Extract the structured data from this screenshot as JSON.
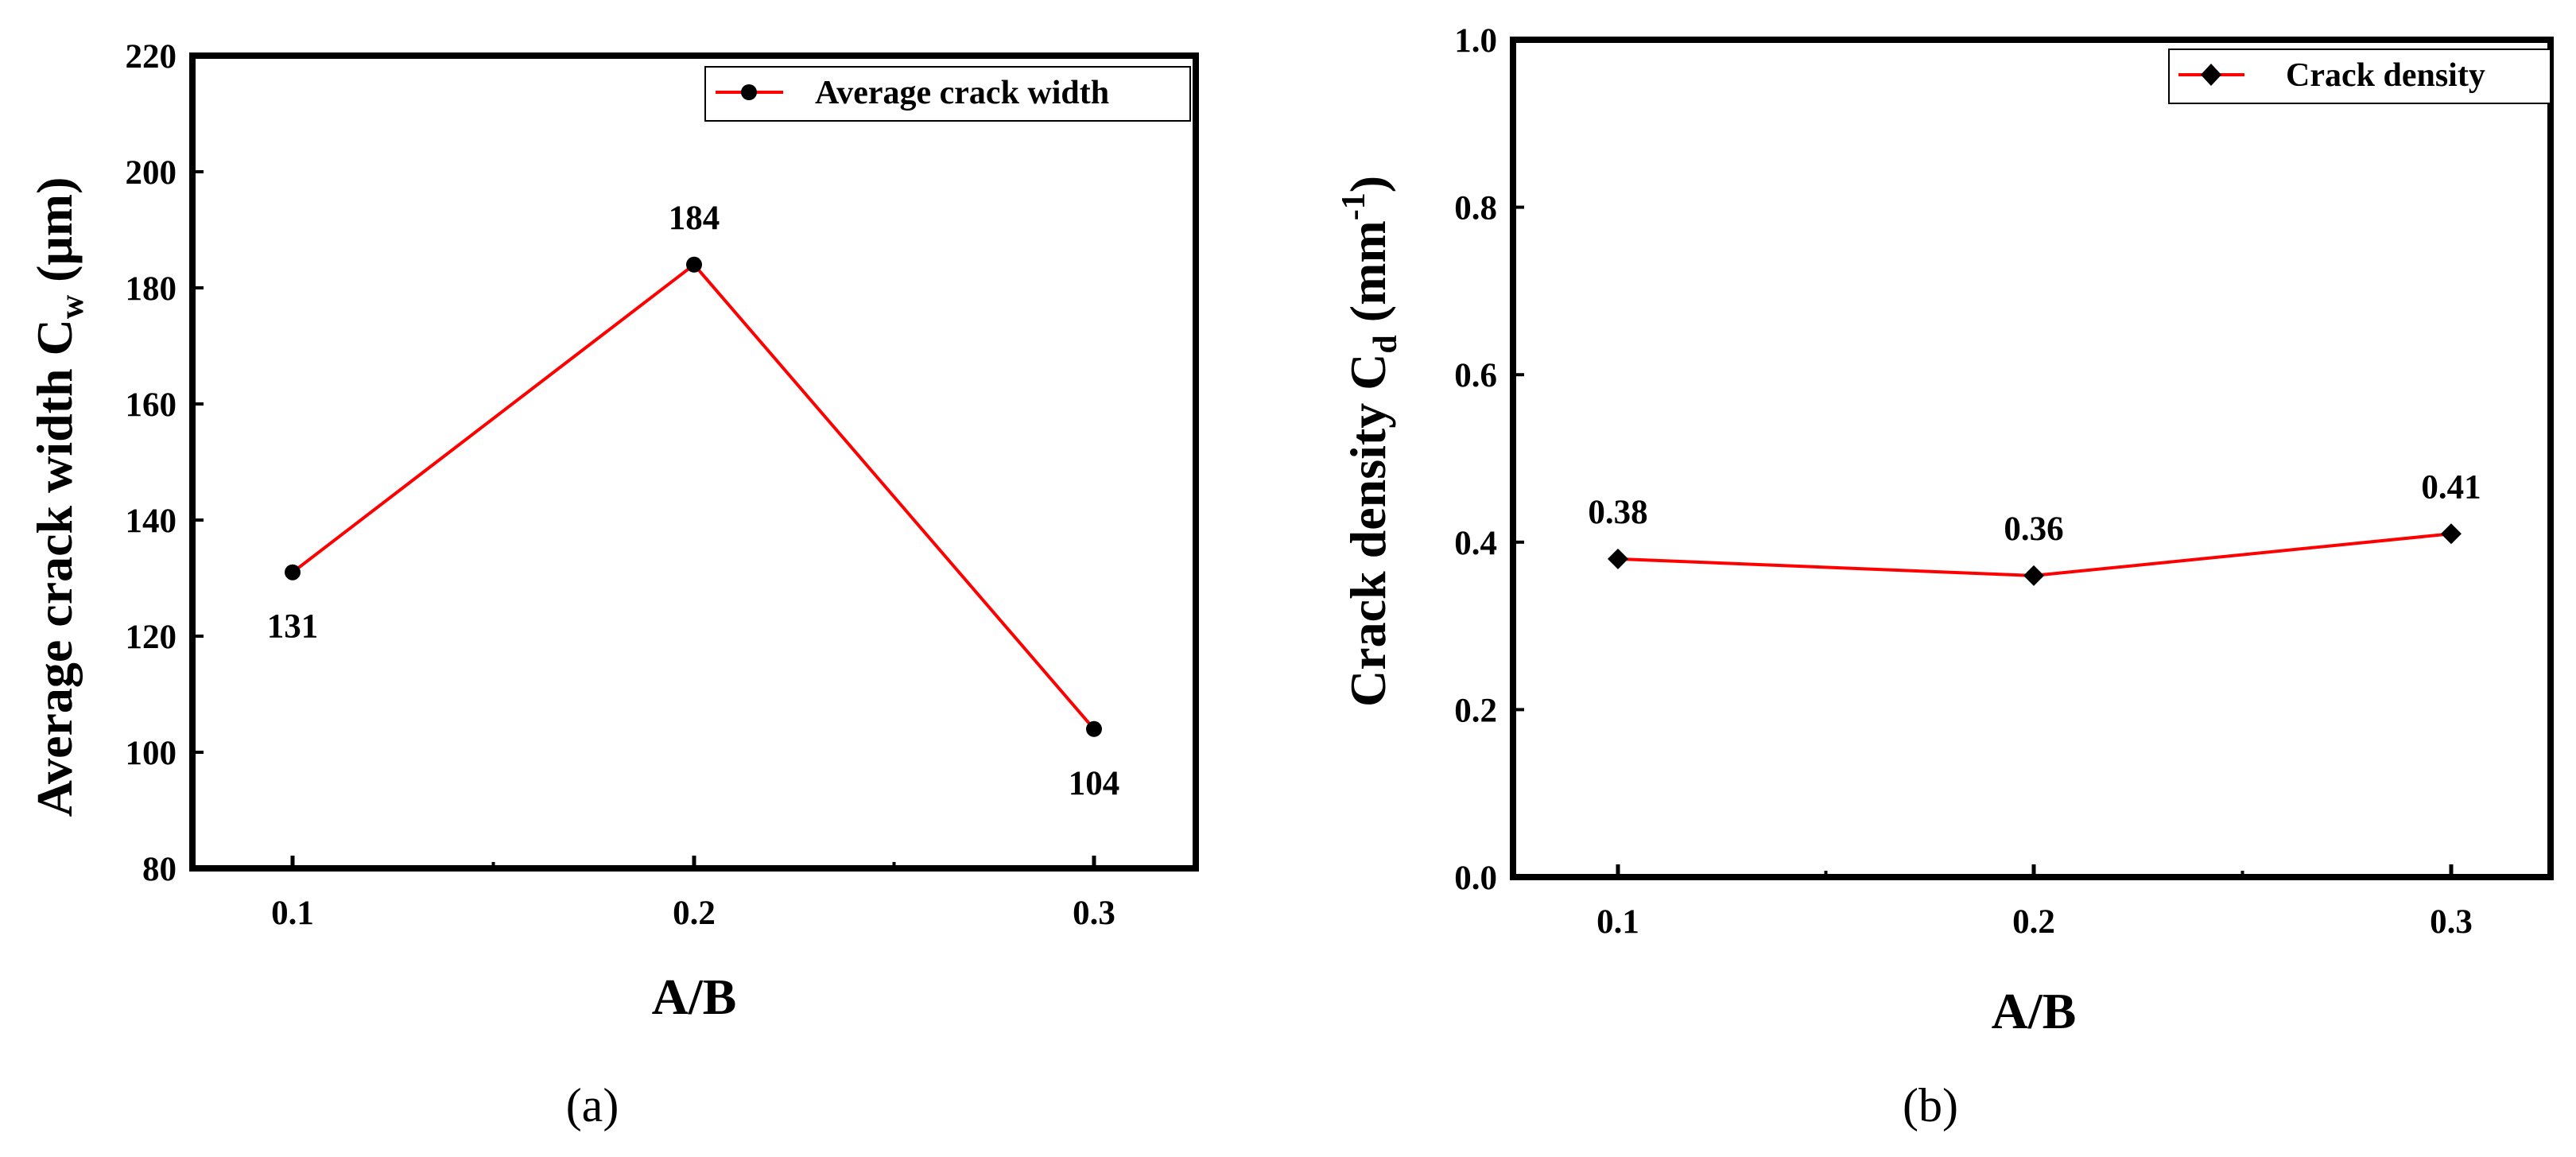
{
  "chart_data": [
    {
      "panel": "a",
      "type": "line",
      "categories": [
        "0.1",
        "0.2",
        "0.3"
      ],
      "x": [
        0.1,
        0.2,
        0.3
      ],
      "series": [
        {
          "name": "Average crack width",
          "values": [
            131,
            184,
            104
          ],
          "color": "#ff0000",
          "marker": "circle"
        }
      ],
      "annotations": [
        "131",
        "184",
        "104"
      ],
      "xlabel": "A/B",
      "ylabel_main": "Average crack width C",
      "ylabel_sub": "w",
      "ylabel_unit": " (μm)",
      "ylim": [
        80,
        220
      ],
      "yticks": [
        "80",
        "100",
        "120",
        "140",
        "160",
        "180",
        "200",
        "220"
      ],
      "legend_position": "top-right",
      "caption": "(a)"
    },
    {
      "panel": "b",
      "type": "line",
      "categories": [
        "0.1",
        "0.2",
        "0.3"
      ],
      "x": [
        0.1,
        0.2,
        0.3
      ],
      "series": [
        {
          "name": "Crack density",
          "values": [
            0.38,
            0.36,
            0.41
          ],
          "color": "#ff0000",
          "marker": "diamond"
        }
      ],
      "annotations": [
        "0.38",
        "0.36",
        "0.41"
      ],
      "xlabel": "A/B",
      "ylabel_main": "Crack density C",
      "ylabel_sub": "d",
      "ylabel_unit_open": " (mm",
      "ylabel_sup": "-1",
      "ylabel_unit_close": ")",
      "ylim": [
        0,
        1
      ],
      "yticks": [
        "0.0",
        "0.2",
        "0.4",
        "0.6",
        "0.8",
        "1.0"
      ],
      "legend_position": "top-right",
      "caption": "(b)"
    }
  ]
}
